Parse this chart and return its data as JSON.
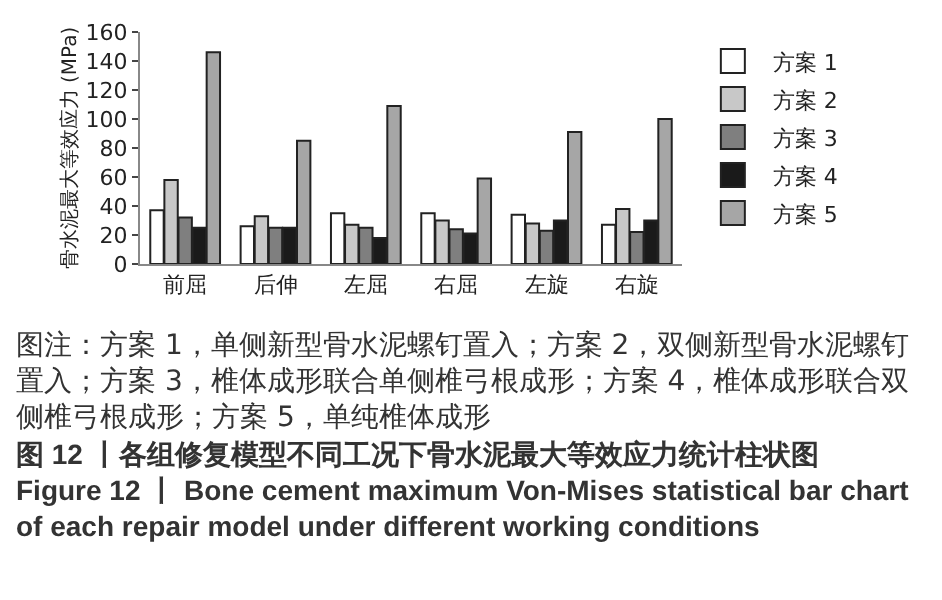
{
  "chart_data": {
    "type": "bar",
    "ylabel": "骨水泥最大等效应力 (MPa)",
    "categories": [
      "前屈",
      "后伸",
      "左屈",
      "右屈",
      "左旋",
      "右旋"
    ],
    "series": [
      {
        "name": "方案 1",
        "color": "#ffffff",
        "values": [
          37,
          26,
          35,
          35,
          34,
          27
        ]
      },
      {
        "name": "方案 2",
        "color": "#c8c8c8",
        "values": [
          58,
          33,
          27,
          30,
          28,
          38
        ]
      },
      {
        "name": "方案 3",
        "color": "#7f7f7f",
        "values": [
          32,
          25,
          25,
          24,
          23,
          22
        ]
      },
      {
        "name": "方案 4",
        "color": "#1a1a1a",
        "values": [
          25,
          25,
          18,
          21,
          30,
          30
        ]
      },
      {
        "name": "方案 5",
        "color": "#a6a6a6",
        "values": [
          146,
          85,
          109,
          59,
          91,
          100
        ]
      }
    ],
    "ylim": [
      0,
      160
    ],
    "yticks": [
      0,
      20,
      40,
      60,
      80,
      100,
      120,
      140,
      160
    ],
    "grid": false,
    "legend": "right",
    "annotations": [
      "图注：方案 1，单侧新型骨水泥螺钉置入；方案 2，双侧新型骨水泥螺钉置入；方案 3，椎体成形联合单侧椎弓根成形；方案 4，椎体成形联合双侧椎弓根成形；方案 5，单纯椎体成形",
      "图 12 丨各组修复模型不同工况下骨水泥最大等效应力统计柱状图",
      "Figure 12 丨 Bone cement maximum Von-Mises statistical bar chart of each repair model under different working conditions"
    ]
  }
}
